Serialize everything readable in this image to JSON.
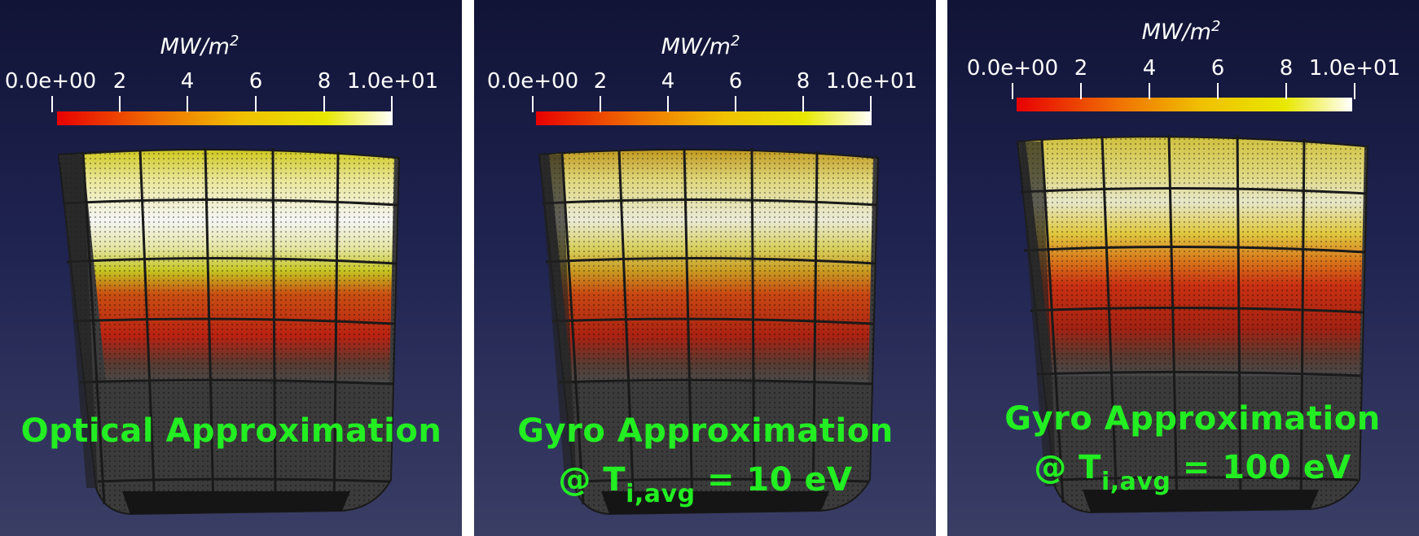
{
  "colorbar": {
    "unit_base": "MW/m",
    "unit_exp": "2",
    "ticks": [
      "0.0e+00",
      "2",
      "4",
      "6",
      "8",
      "1.0e+01"
    ],
    "colors": [
      "#e80000",
      "#f07000",
      "#f0c000",
      "#e8e800",
      "#ffffff"
    ]
  },
  "panels": [
    {
      "line1": "Optical Approximation",
      "line2_prefix": "",
      "line2_sub": "",
      "line2_suffix": ""
    },
    {
      "line1": "Gyro Approximation",
      "line2_prefix": "@ T",
      "line2_sub": "i,avg",
      "line2_suffix": " = 10 eV"
    },
    {
      "line1": "Gyro Approximation",
      "line2_prefix": "@ T",
      "line2_sub": "i,avg",
      "line2_suffix": " = 100 eV"
    }
  ],
  "caption_color": "#22ee22"
}
